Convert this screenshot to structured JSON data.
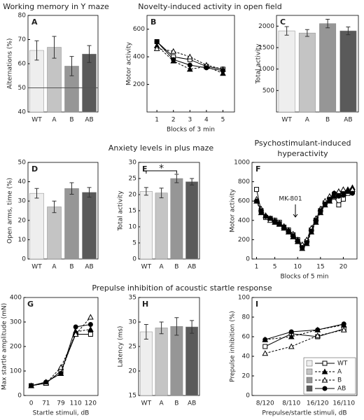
{
  "chart_data": [
    {
      "type": "bar",
      "panel": "A",
      "title": "Working memory in Y maze",
      "ylabel": "Alternations (%)",
      "categories": [
        "WT",
        "A",
        "B",
        "AB"
      ],
      "values": [
        65.5,
        66.8,
        59,
        64
      ],
      "errors": [
        4,
        4.5,
        4,
        3.5
      ],
      "colors": [
        "#eeeeee",
        "#c4c4c4",
        "#969696",
        "#5a5a5a"
      ],
      "refline": 50,
      "ylim": [
        40,
        80
      ],
      "yticks": [
        40,
        50,
        60,
        70,
        80
      ]
    },
    {
      "type": "line",
      "panel": "B",
      "title": "Novelty-induced activity in open field",
      "ylabel": "Motor activity",
      "xlabel": "Blocks of 3 min",
      "x": [
        1,
        2,
        3,
        4,
        5
      ],
      "xlim": [
        0.4,
        5.7
      ],
      "xticks": [
        1,
        2,
        3,
        4,
        5
      ],
      "ylim": [
        0,
        700
      ],
      "yticks": [
        200,
        400,
        600
      ],
      "series": [
        {
          "color": "#000000",
          "marker": "square",
          "open": true,
          "dash": false,
          "values": [
            510,
            400,
            380,
            330,
            310
          ]
        },
        {
          "color": "#000000",
          "marker": "triangle",
          "open": false,
          "dash": true,
          "values": [
            480,
            370,
            310,
            330,
            280
          ]
        },
        {
          "color": "#000000",
          "marker": "triangle",
          "open": true,
          "dash": true,
          "values": [
            460,
            440,
            400,
            340,
            310
          ]
        },
        {
          "color": "#000000",
          "marker": "circle",
          "open": false,
          "dash": false,
          "values": [
            510,
            380,
            340,
            320,
            300
          ]
        }
      ]
    },
    {
      "type": "bar",
      "panel": "C",
      "ylabel": "Total activity",
      "categories": [
        "WT",
        "A",
        "B",
        "AB"
      ],
      "values": [
        1890,
        1840,
        2060,
        1890
      ],
      "errors": [
        100,
        80,
        100,
        90
      ],
      "colors": [
        "#eeeeee",
        "#c4c4c4",
        "#969696",
        "#5a5a5a"
      ],
      "ylim": [
        0,
        2250
      ],
      "yticks": [
        500,
        1000,
        1500,
        2000
      ]
    },
    {
      "type": "bar",
      "panel": "D",
      "title": "Anxiety levels in plus maze",
      "ylabel": "Open arms, time (%)",
      "categories": [
        "WT",
        "A",
        "B",
        "AB"
      ],
      "values": [
        34,
        27,
        36.5,
        34.5
      ],
      "errors": [
        2.5,
        3,
        3,
        2.5
      ],
      "colors": [
        "#eeeeee",
        "#c4c4c4",
        "#969696",
        "#5a5a5a"
      ],
      "ylim": [
        0,
        50
      ],
      "yticks": [
        0,
        10,
        20,
        30,
        40,
        50
      ]
    },
    {
      "type": "bar",
      "panel": "E",
      "ylabel": "Total activity",
      "annotation": "*",
      "categories": [
        "WT",
        "A",
        "B",
        "AB"
      ],
      "values": [
        21,
        20.5,
        25,
        24
      ],
      "errors": [
        1.2,
        1.5,
        1.3,
        1
      ],
      "colors": [
        "#eeeeee",
        "#c4c4c4",
        "#969696",
        "#5a5a5a"
      ],
      "ylim": [
        0,
        30
      ],
      "yticks": [
        0,
        5,
        10,
        15,
        20,
        25,
        30
      ]
    },
    {
      "type": "line",
      "panel": "F",
      "title": "Psychostimulant-induced hyperactivity",
      "ylabel": "Motor activity",
      "xlabel": "Blocks of 5 min",
      "annotation": "MK-801",
      "x": [
        1,
        2,
        3,
        4,
        5,
        6,
        7,
        8,
        9,
        10,
        11,
        12,
        13,
        14,
        15,
        16,
        17,
        18,
        19,
        20,
        21,
        22
      ],
      "xlim": [
        0,
        23
      ],
      "xticks": [
        1,
        5,
        10,
        15,
        20
      ],
      "ylim": [
        0,
        1000
      ],
      "yticks": [
        0,
        200,
        400,
        600,
        800,
        1000
      ],
      "series": [
        {
          "color": "#000000",
          "marker": "square",
          "open": true,
          "dash": false,
          "values": [
            720,
            500,
            430,
            420,
            400,
            380,
            330,
            300,
            250,
            200,
            130,
            180,
            300,
            400,
            500,
            580,
            620,
            640,
            560,
            620,
            680,
            700
          ]
        },
        {
          "color": "#000000",
          "marker": "triangle",
          "open": false,
          "dash": true,
          "values": [
            600,
            480,
            450,
            420,
            380,
            360,
            320,
            280,
            230,
            180,
            110,
            160,
            280,
            380,
            480,
            560,
            600,
            650,
            680,
            700,
            720,
            740
          ]
        },
        {
          "color": "#000000",
          "marker": "triangle",
          "open": true,
          "dash": true,
          "values": [
            620,
            520,
            450,
            400,
            400,
            370,
            340,
            300,
            260,
            200,
            150,
            200,
            320,
            420,
            520,
            600,
            650,
            680,
            700,
            720,
            700,
            720
          ]
        },
        {
          "color": "#000000",
          "marker": "circle",
          "open": false,
          "dash": false,
          "values": [
            600,
            500,
            440,
            420,
            390,
            370,
            330,
            290,
            240,
            190,
            120,
            170,
            290,
            400,
            500,
            570,
            620,
            680,
            650,
            660,
            700,
            680
          ]
        }
      ]
    },
    {
      "type": "line",
      "panel": "G",
      "title": "Prepulse inhibition of acoustic startle response",
      "ylabel": "Max startle amplitude (mN)",
      "xlabel": "Startle stimuli, dB",
      "categories": [
        "0",
        "71",
        "79",
        "110",
        "120"
      ],
      "ylim": [
        0,
        400
      ],
      "yticks": [
        0,
        100,
        200,
        300,
        400
      ],
      "series": [
        {
          "color": "#000000",
          "marker": "square",
          "open": true,
          "dash": false,
          "values": [
            40,
            50,
            100,
            250,
            250
          ]
        },
        {
          "color": "#000000",
          "marker": "triangle",
          "open": false,
          "dash": true,
          "values": [
            40,
            55,
            90,
            260,
            270
          ]
        },
        {
          "color": "#000000",
          "marker": "triangle",
          "open": true,
          "dash": true,
          "values": [
            40,
            50,
            115,
            250,
            320
          ]
        },
        {
          "color": "#000000",
          "marker": "circle",
          "open": false,
          "dash": false,
          "values": [
            40,
            55,
            90,
            280,
            290
          ]
        }
      ]
    },
    {
      "type": "bar",
      "panel": "H",
      "ylabel": "Latency (ms)",
      "categories": [
        "WT",
        "A",
        "B",
        "AB"
      ],
      "values": [
        28,
        28.8,
        29.1,
        29
      ],
      "errors": [
        1.5,
        1.2,
        1.8,
        1.3
      ],
      "colors": [
        "#eeeeee",
        "#c4c4c4",
        "#969696",
        "#5a5a5a"
      ],
      "ylim": [
        15,
        35
      ],
      "yticks": [
        15,
        20,
        25,
        30,
        35
      ]
    },
    {
      "type": "line",
      "panel": "I",
      "ylabel": "Prepulse inhibition (%)",
      "xlabel": "Prepulse/startle stimuli, dB",
      "legend": "lower right",
      "categories": [
        "8/120",
        "8/110",
        "16/120",
        "16/110"
      ],
      "ylim": [
        0,
        100
      ],
      "yticks": [
        0,
        20,
        40,
        60,
        80,
        100
      ],
      "series": [
        {
          "name": "WT",
          "swatch": "#eeeeee",
          "color": "#000000",
          "marker": "square",
          "open": true,
          "dash": false,
          "values": [
            50,
            63,
            60,
            68
          ]
        },
        {
          "name": "A",
          "swatch": "#c4c4c4",
          "color": "#000000",
          "marker": "triangle",
          "open": false,
          "dash": true,
          "values": [
            57,
            60,
            67,
            72
          ]
        },
        {
          "name": "B",
          "swatch": "#969696",
          "color": "#000000",
          "marker": "triangle",
          "open": true,
          "dash": true,
          "values": [
            43,
            50,
            61,
            67
          ]
        },
        {
          "name": "AB",
          "swatch": "#5a5a5a",
          "color": "#000000",
          "marker": "circle",
          "open": false,
          "dash": false,
          "values": [
            57,
            65,
            67,
            73
          ]
        }
      ]
    }
  ]
}
